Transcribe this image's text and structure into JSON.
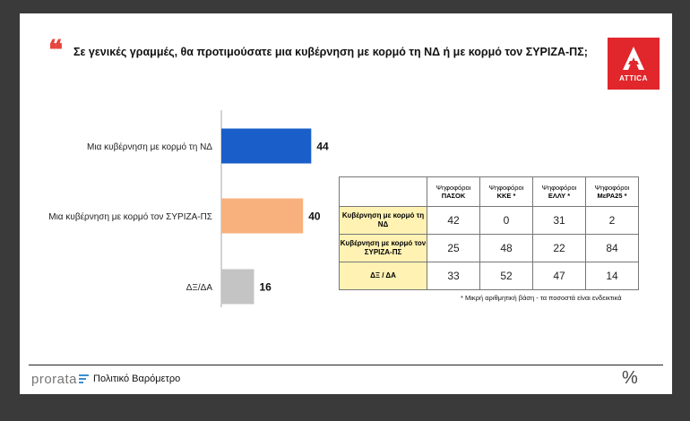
{
  "header": {
    "title": "Σε γενικές γραμμές, θα προτιμούσατε μια κυβέρνηση με κορμό τη ΝΔ ή με κορμό τον ΣΥΡΙΖΑ-ΠΣ;",
    "logo_text": "ATTICA"
  },
  "chart_data": {
    "type": "bar",
    "orientation": "horizontal",
    "categories": [
      "Μια κυβέρνηση με κορμό τη ΝΔ",
      "Μια κυβέρνηση με κορμό τον ΣΥΡΙΖΑ-ΠΣ",
      "ΔΞ/ΔΑ"
    ],
    "values": [
      44,
      40,
      16
    ],
    "colors": [
      "#1a5fc9",
      "#f8b07c",
      "#c4c4c4"
    ],
    "xlim": [
      0,
      100
    ],
    "data_labels": true,
    "grid": false
  },
  "table": {
    "columns": [
      {
        "line1": "Ψηφοφόροι",
        "line2": "ΠΑΣΟΚ"
      },
      {
        "line1": "Ψηφοφόροι",
        "line2": "ΚΚΕ *"
      },
      {
        "line1": "Ψηφοφόροι",
        "line2": "ΕΛΛΥ *"
      },
      {
        "line1": "Ψηφοφόροι",
        "line2": "ΜεΡΑ25 *"
      }
    ],
    "rows": [
      {
        "label": "Κυβέρνηση με κορμό τη ΝΔ",
        "values": [
          "42",
          "0",
          "31",
          "2"
        ]
      },
      {
        "label": "Κυβέρνηση με κορμό τον ΣΥΡΙΖΑ-ΠΣ",
        "values": [
          "25",
          "48",
          "22",
          "84"
        ]
      },
      {
        "label": "ΔΞ / ΔΑ",
        "values": [
          "33",
          "52",
          "47",
          "14"
        ]
      }
    ],
    "row_header_color": "#fff2b3"
  },
  "footnote": "* Μικρή αριθμητική βάση - τα ποσοστά είναι ενδεικτικά",
  "footer": {
    "brand": "prorata",
    "subtitle": "Πολιτικό Βαρόμετρο",
    "symbol": "%"
  }
}
